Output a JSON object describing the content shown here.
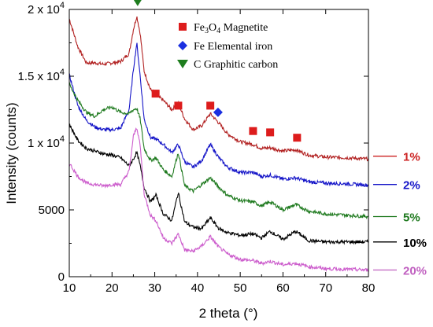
{
  "chart_data": {
    "type": "line",
    "xlabel": "2 theta (°)",
    "ylabel": "Intensity (counts)",
    "xlim": [
      10,
      80
    ],
    "ylim": [
      0,
      20000
    ],
    "x_ticks": [
      "10",
      "20",
      "30",
      "40",
      "50",
      "60",
      "70",
      "80"
    ],
    "y_ticks": [
      {
        "value": 0,
        "base": "0",
        "exp": ""
      },
      {
        "value": 5000,
        "base": "5000",
        "exp": ""
      },
      {
        "value": 10000,
        "base": "1 x 10",
        "exp": "4"
      },
      {
        "value": 15000,
        "base": "1.5 x 10",
        "exp": "4"
      },
      {
        "value": 20000,
        "base": "2 x 10",
        "exp": "4"
      }
    ],
    "grid": false,
    "legend_position": "top-right",
    "legend": [
      {
        "marker": "square",
        "color": "#dd1c1c",
        "prefix": "Fe",
        "sub1": "3",
        "mid": "O",
        "sub2": "4",
        "label": " Magnetite"
      },
      {
        "marker": "diamond",
        "color": "#1a2fe0",
        "prefix": "Fe",
        "sub1": "",
        "mid": "",
        "sub2": "",
        "label": " Elemental iron"
      },
      {
        "marker": "triangle-down",
        "color": "#1e7d1e",
        "prefix": "C",
        "sub1": "",
        "mid": "",
        "sub2": "",
        "label": " Graphitic carbon"
      }
    ],
    "series": [
      {
        "name": "1%",
        "color": "#b22222",
        "label_color": "#cc2222",
        "end_value": 8900,
        "points": [
          [
            10,
            19300
          ],
          [
            12,
            17200
          ],
          [
            14,
            16000
          ],
          [
            16,
            16000
          ],
          [
            18,
            15900
          ],
          [
            20,
            16000
          ],
          [
            22,
            16100
          ],
          [
            24,
            16700
          ],
          [
            25,
            18500
          ],
          [
            25.8,
            19500
          ],
          [
            26.6,
            18200
          ],
          [
            27.5,
            15400
          ],
          [
            29,
            14000
          ],
          [
            30.3,
            13600
          ],
          [
            32,
            13200
          ],
          [
            34,
            12500
          ],
          [
            35.5,
            13000
          ],
          [
            37,
            11800
          ],
          [
            39,
            11000
          ],
          [
            41,
            11300
          ],
          [
            43,
            12200
          ],
          [
            45,
            11500
          ],
          [
            47,
            10700
          ],
          [
            50,
            10100
          ],
          [
            53,
            9900
          ],
          [
            55,
            9600
          ],
          [
            57,
            9650
          ],
          [
            60,
            9400
          ],
          [
            63,
            9500
          ],
          [
            66,
            9100
          ],
          [
            70,
            8950
          ],
          [
            75,
            8900
          ],
          [
            80,
            8800
          ]
        ]
      },
      {
        "name": "2%",
        "color": "#1515c8",
        "label_color": "#1515c8",
        "end_value": 6900,
        "points": [
          [
            10,
            15100
          ],
          [
            12,
            12800
          ],
          [
            14,
            11700
          ],
          [
            16,
            11200
          ],
          [
            18,
            11000
          ],
          [
            20,
            11000
          ],
          [
            22,
            11100
          ],
          [
            24,
            12500
          ],
          [
            25,
            15500
          ],
          [
            25.8,
            17500
          ],
          [
            26.6,
            15000
          ],
          [
            27.5,
            11800
          ],
          [
            29,
            10400
          ],
          [
            30.3,
            10300
          ],
          [
            32,
            9900
          ],
          [
            34,
            9300
          ],
          [
            35.5,
            9900
          ],
          [
            37,
            8600
          ],
          [
            39,
            8200
          ],
          [
            41,
            8700
          ],
          [
            43,
            9900
          ],
          [
            45,
            8900
          ],
          [
            47,
            8200
          ],
          [
            50,
            7800
          ],
          [
            53,
            7800
          ],
          [
            55,
            7500
          ],
          [
            57,
            7600
          ],
          [
            60,
            7300
          ],
          [
            63,
            7400
          ],
          [
            66,
            7100
          ],
          [
            70,
            7000
          ],
          [
            75,
            6950
          ],
          [
            80,
            6850
          ]
        ]
      },
      {
        "name": "5%",
        "color": "#1f7a1f",
        "label_color": "#1f7a1f",
        "end_value": 4500,
        "points": [
          [
            10,
            14400
          ],
          [
            12,
            13200
          ],
          [
            14,
            12300
          ],
          [
            16,
            12000
          ],
          [
            18,
            12500
          ],
          [
            20,
            12700
          ],
          [
            22,
            12300
          ],
          [
            24,
            12200
          ],
          [
            25,
            12500
          ],
          [
            25.8,
            12600
          ],
          [
            26.6,
            11800
          ],
          [
            27.5,
            9600
          ],
          [
            29,
            8700
          ],
          [
            30.3,
            8900
          ],
          [
            32,
            8000
          ],
          [
            34,
            7500
          ],
          [
            35.5,
            9300
          ],
          [
            37,
            6800
          ],
          [
            39,
            6400
          ],
          [
            41,
            6900
          ],
          [
            43,
            7400
          ],
          [
            45,
            6700
          ],
          [
            47,
            6100
          ],
          [
            50,
            5700
          ],
          [
            53,
            5600
          ],
          [
            55,
            5300
          ],
          [
            57,
            5600
          ],
          [
            60,
            5000
          ],
          [
            63,
            5400
          ],
          [
            66,
            4900
          ],
          [
            70,
            4700
          ],
          [
            75,
            4600
          ],
          [
            80,
            4500
          ]
        ]
      },
      {
        "name": "10%",
        "color": "#000000",
        "label_color": "#000000",
        "end_value": 2600,
        "points": [
          [
            10,
            11400
          ],
          [
            12,
            10200
          ],
          [
            14,
            9600
          ],
          [
            16,
            9400
          ],
          [
            18,
            9200
          ],
          [
            20,
            9100
          ],
          [
            22,
            8900
          ],
          [
            24,
            8300
          ],
          [
            25,
            8800
          ],
          [
            25.8,
            9300
          ],
          [
            26.6,
            8300
          ],
          [
            27.5,
            6700
          ],
          [
            29,
            5600
          ],
          [
            30.3,
            6100
          ],
          [
            32,
            4700
          ],
          [
            34,
            4200
          ],
          [
            35.5,
            6300
          ],
          [
            37,
            4100
          ],
          [
            39,
            3700
          ],
          [
            41,
            3600
          ],
          [
            43,
            4400
          ],
          [
            45,
            3600
          ],
          [
            47,
            3300
          ],
          [
            50,
            3100
          ],
          [
            53,
            3200
          ],
          [
            55,
            2900
          ],
          [
            57,
            3400
          ],
          [
            60,
            2800
          ],
          [
            63,
            3400
          ],
          [
            66,
            2700
          ],
          [
            70,
            2600
          ],
          [
            75,
            2600
          ],
          [
            80,
            2600
          ]
        ]
      },
      {
        "name": "20%",
        "color": "#cc5ccc",
        "label_color": "#c060c0",
        "end_value": 500,
        "points": [
          [
            10,
            8500
          ],
          [
            12,
            7500
          ],
          [
            14,
            7000
          ],
          [
            16,
            6900
          ],
          [
            18,
            6800
          ],
          [
            20,
            6900
          ],
          [
            22,
            6900
          ],
          [
            24,
            7900
          ],
          [
            25,
            10500
          ],
          [
            25.8,
            11200
          ],
          [
            26.6,
            9800
          ],
          [
            27.5,
            6200
          ],
          [
            29,
            4600
          ],
          [
            30.3,
            4200
          ],
          [
            32,
            2900
          ],
          [
            34,
            2500
          ],
          [
            35.5,
            3200
          ],
          [
            37,
            2000
          ],
          [
            39,
            1900
          ],
          [
            41,
            2300
          ],
          [
            43,
            3000
          ],
          [
            45,
            2200
          ],
          [
            47,
            1700
          ],
          [
            50,
            1300
          ],
          [
            53,
            1200
          ],
          [
            55,
            1000
          ],
          [
            57,
            1150
          ],
          [
            60,
            900
          ],
          [
            63,
            1000
          ],
          [
            66,
            750
          ],
          [
            70,
            600
          ],
          [
            75,
            550
          ],
          [
            80,
            500
          ]
        ]
      }
    ],
    "annotations": [
      {
        "marker": "triangle-down",
        "color": "#1e7d1e",
        "x": 26.0,
        "y": 20600
      },
      {
        "marker": "square",
        "color": "#dd1c1c",
        "x": 30.2,
        "y": 13700
      },
      {
        "marker": "square",
        "color": "#dd1c1c",
        "x": 35.5,
        "y": 12800
      },
      {
        "marker": "square",
        "color": "#dd1c1c",
        "x": 43.0,
        "y": 12800
      },
      {
        "marker": "diamond",
        "color": "#1a2fe0",
        "x": 44.8,
        "y": 12300
      },
      {
        "marker": "square",
        "color": "#dd1c1c",
        "x": 53.0,
        "y": 10900
      },
      {
        "marker": "square",
        "color": "#dd1c1c",
        "x": 57.0,
        "y": 10800
      },
      {
        "marker": "square",
        "color": "#dd1c1c",
        "x": 63.3,
        "y": 10400
      }
    ]
  }
}
